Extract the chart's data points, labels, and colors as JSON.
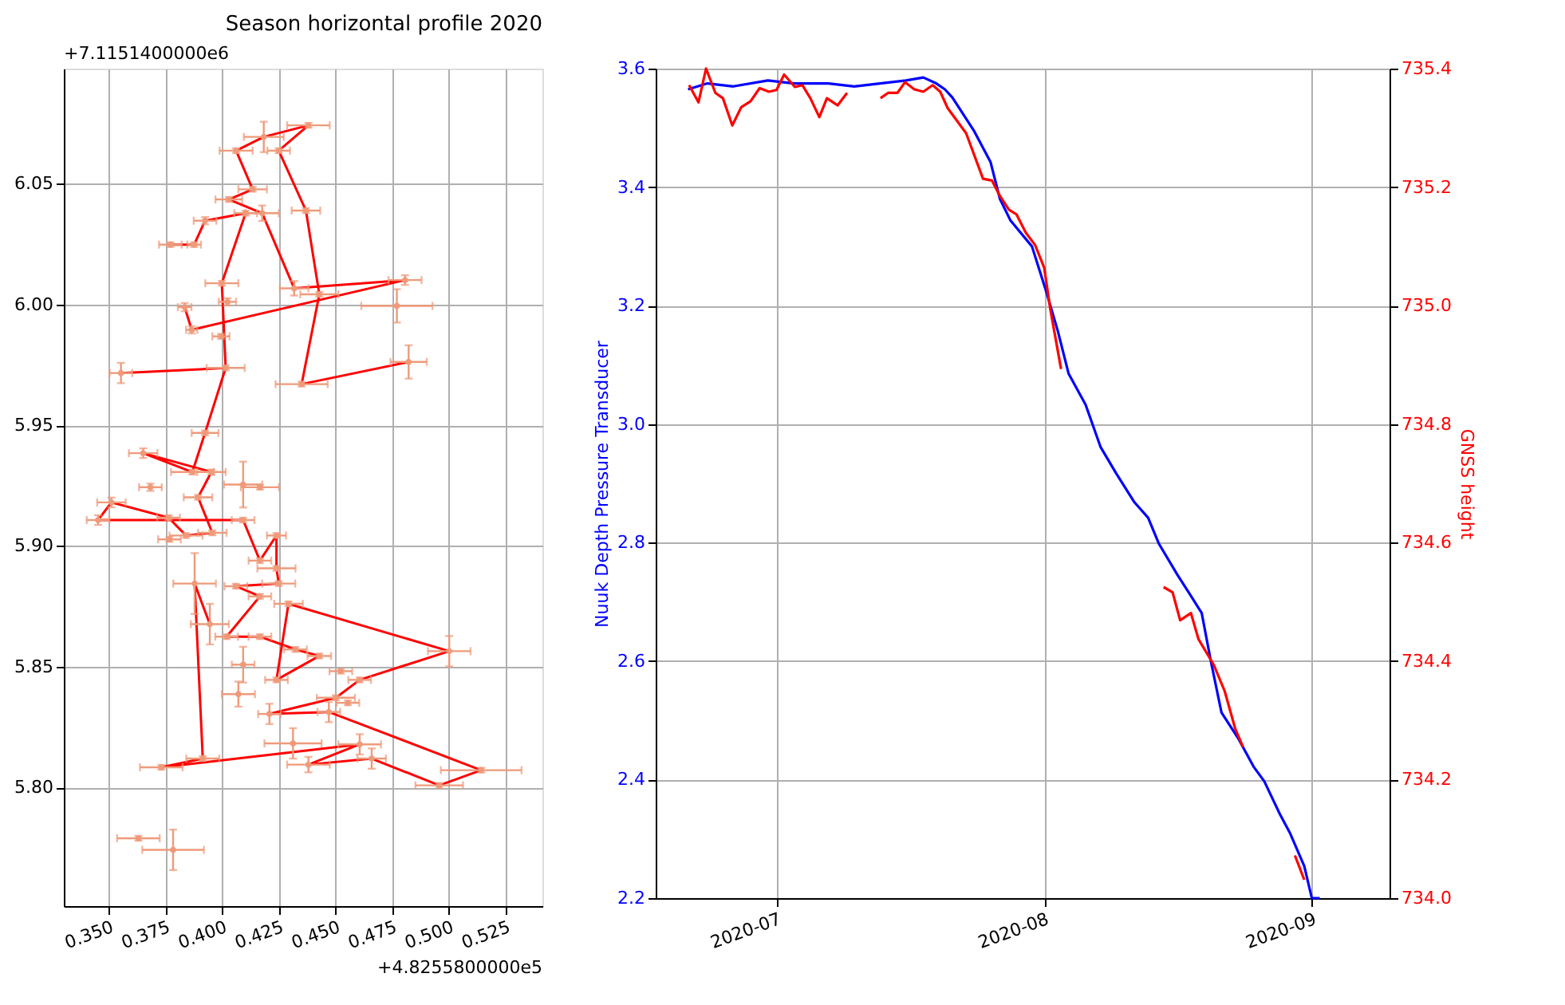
{
  "chart_data": [
    {
      "type": "scatter",
      "title": "Season horizontal profile 2020",
      "annotations": [
        "+4.8255800000e5",
        "+7.1151400000e6"
      ],
      "xlim": [
        0.3301,
        0.5412
      ],
      "ylim": [
        5.7508,
        6.0977
      ],
      "xticks": [
        {
          "value": 0.35,
          "label": "0.350"
        },
        {
          "value": 0.375,
          "label": "0.375"
        },
        {
          "value": 0.4,
          "label": "0.400"
        },
        {
          "value": 0.425,
          "label": "0.425"
        },
        {
          "value": 0.45,
          "label": "0.450"
        },
        {
          "value": 0.475,
          "label": "0.475"
        },
        {
          "value": 0.5,
          "label": "0.500"
        },
        {
          "value": 0.525,
          "label": "0.525"
        }
      ],
      "yticks": [
        {
          "value": 5.8,
          "label": "5.80"
        },
        {
          "value": 5.85,
          "label": "5.85"
        },
        {
          "value": 5.9,
          "label": "5.90"
        },
        {
          "value": 5.95,
          "label": "5.95"
        },
        {
          "value": 6.0,
          "label": "6.00"
        },
        {
          "value": 6.05,
          "label": "6.05"
        }
      ],
      "grid": true,
      "line_style": "solid",
      "series": [
        {
          "type": "line",
          "color": "#ff0000",
          "marker": "none",
          "x": [
            0.4822,
            0.435,
            0.4428,
            0.4369,
            0.4249,
            0.438,
            0.4183,
            0.4061,
            0.4134,
            0.4029,
            0.4176,
            0.4317,
            0.4806,
            0.3865,
            0.3834
          ],
          "values": [
            5.9762,
            5.967,
            6.0042,
            6.0389,
            6.0637,
            6.0742,
            6.0694,
            6.0637,
            6.0477,
            6.0435,
            6.0378,
            6.0067,
            6.0101,
            5.9895,
            5.9989
          ]
        },
        {
          "type": "line",
          "color": "#ff0000",
          "marker": "none",
          "x": [
            0.3771,
            0.3876,
            0.3924,
            0.4103,
            0.3998,
            0.4015,
            0.3553
          ],
          "values": [
            6.0248,
            6.0248,
            6.0347,
            6.0378,
            6.0088,
            5.9737,
            5.9716
          ]
        },
        {
          "type": "line",
          "color": "#ff0000",
          "marker": "none",
          "x": [
            0.4015,
            0.3924,
            0.3868,
            0.3651,
            0.3952,
            0.3893,
            0.3956,
            0.384,
            0.3763,
            0.3511,
            0.3452,
            0.4092,
            0.4166,
            0.4239,
            0.4239,
            0.4249,
            0.406,
            0.4166,
            0.4019,
            0.4166,
            0.4323,
            0.4428,
            0.4239,
            0.4292,
            0.5001,
            0.4606,
            0.4501,
            0.4208,
            0.447,
            0.5142,
            0.4957,
            0.4659,
            0.438,
            0.4606,
            0.3731,
            0.3914,
            0.3878,
            0.3945
          ],
          "values": [
            5.9737,
            5.9468,
            5.9306,
            5.9384,
            5.9306,
            5.9201,
            5.9054,
            5.9043,
            5.9117,
            5.918,
            5.9107,
            5.9107,
            5.8939,
            5.9043,
            5.8907,
            5.8844,
            5.8833,
            5.8791,
            5.8624,
            5.8624,
            5.8571,
            5.8544,
            5.8445,
            5.876,
            5.8564,
            5.8445,
            5.8371,
            5.8304,
            5.8312,
            5.8071,
            5.8008,
            5.8119,
            5.8094,
            5.8178,
            5.8083,
            5.8119,
            5.8844,
            5.8676
          ]
        },
        {
          "type": "scatter",
          "color": "#ef9a7a",
          "marker": "circle",
          "x": [
            0.438,
            0.4183,
            0.4061,
            0.4249,
            0.4134,
            0.4029,
            0.4176,
            0.4103,
            0.4369,
            0.3924,
            0.3771,
            0.3876,
            0.3998,
            0.4317,
            0.4428,
            0.4806,
            0.477,
            0.4023,
            0.3834,
            0.3865,
            0.3994,
            0.4015,
            0.3553,
            0.435,
            0.4822,
            0.3924,
            0.3651,
            0.3868,
            0.3952,
            0.3683,
            0.4092,
            0.4166,
            0.3511,
            0.3893,
            0.3763,
            0.3452,
            0.4092,
            0.3956,
            0.384,
            0.3767,
            0.4239,
            0.4166,
            0.4239,
            0.3878,
            0.4249,
            0.406,
            0.4166,
            0.4292,
            0.3945,
            0.5001,
            0.4019,
            0.4166,
            0.4323,
            0.4428,
            0.4239,
            0.4523,
            0.4606,
            0.4092,
            0.4071,
            0.4501,
            0.4554,
            0.4208,
            0.447,
            0.4312,
            0.4606,
            0.3914,
            0.3731,
            0.438,
            0.4659,
            0.5142,
            0.4957,
            0.363,
            0.3783
          ],
          "values": [
            6.0742,
            6.0694,
            6.0637,
            6.0637,
            6.0477,
            6.0435,
            6.0378,
            6.0378,
            6.0389,
            6.0347,
            6.0248,
            6.0248,
            6.0088,
            6.0067,
            6.0042,
            6.0101,
            5.9994,
            6.0011,
            5.9989,
            5.9895,
            5.9868,
            5.9737,
            5.9716,
            5.967,
            5.9762,
            5.9468,
            5.9384,
            5.9306,
            5.9306,
            5.9243,
            5.9254,
            5.9243,
            5.918,
            5.9201,
            5.9117,
            5.9107,
            5.9107,
            5.9054,
            5.9043,
            5.9027,
            5.9043,
            5.8939,
            5.8907,
            5.8844,
            5.8844,
            5.8833,
            5.8791,
            5.876,
            5.8676,
            5.8564,
            5.8624,
            5.8624,
            5.8571,
            5.8544,
            5.8445,
            5.8481,
            5.8445,
            5.8508,
            5.8386,
            5.8371,
            5.835,
            5.8304,
            5.8312,
            5.8182,
            5.8178,
            5.8119,
            5.8083,
            5.8094,
            5.8119,
            5.8071,
            5.8008,
            5.7789,
            5.7741
          ],
          "errors": [
            0.001,
            0.0063,
            0.001,
            0.001,
            0.001,
            0.001,
            0.0032,
            0.001,
            0.001,
            0.0015,
            0.001,
            0.001,
            0.001,
            0.003,
            0.001,
            0.002,
            0.0069,
            0.0015,
            0.0017,
            0.0015,
            0.001,
            0.001,
            0.0042,
            0.001,
            0.0069,
            0.001,
            0.002,
            0.001,
            0.001,
            0.0015,
            0.0095,
            0.001,
            0.002,
            0.001,
            0.001,
            0.002,
            0.001,
            0.001,
            0.001,
            0.001,
            0.001,
            0.001,
            0.001,
            0.0126,
            0.001,
            0.001,
            0.001,
            0.001,
            0.0084,
            0.0063,
            0.001,
            0.001,
            0.001,
            0.001,
            0.001,
            0.001,
            0.001,
            0.0074,
            0.0052,
            0.001,
            0.001,
            0.0042,
            0.0042,
            0.0063,
            0.0042,
            0.001,
            0.001,
            0.0032,
            0.0042,
            0.001,
            0.001,
            0.001,
            0.0084
          ],
          "xerrors": [
            0.0094,
            0.0088,
            0.0073,
            0.005,
            0.0063,
            0.0059,
            0.0073,
            0.005,
            0.0063,
            0.005,
            0.005,
            0.003,
            0.0073,
            0.0063,
            0.0084,
            0.0073,
            0.0157,
            0.0038,
            0.003,
            0.0025,
            0.0038,
            0.0084,
            0.005,
            0.0115,
            0.008,
            0.0059,
            0.0063,
            0.0094,
            0.0063,
            0.005,
            0.0084,
            0.0084,
            0.0063,
            0.0063,
            0.005,
            0.005,
            0.005,
            0.0063,
            0.0073,
            0.005,
            0.0042,
            0.005,
            0.0084,
            0.0094,
            0.0073,
            0.005,
            0.005,
            0.0063,
            0.0084,
            0.0094,
            0.005,
            0.005,
            0.005,
            0.0052,
            0.005,
            0.005,
            0.005,
            0.005,
            0.0073,
            0.0084,
            0.005,
            0.005,
            0.005,
            0.0126,
            0.0094,
            0.0073,
            0.0094,
            0.0094,
            0.0063,
            0.0178,
            0.0105,
            0.0094,
            0.0136
          ]
        }
      ]
    },
    {
      "type": "line",
      "ylabel": "Nuuk Depth Pressure Transducer",
      "y2label": "GNSS height",
      "xlim": [
        "2020-06-17",
        "2020-09-10"
      ],
      "xticks": [
        {
          "value": "2020-07-01",
          "label": "2020-07"
        },
        {
          "value": "2020-08-01",
          "label": "2020-08"
        },
        {
          "value": "2020-09-01",
          "label": "2020-09"
        }
      ],
      "ylim": [
        2.2,
        3.6
      ],
      "yticks": [
        2.2,
        2.4,
        2.6,
        2.8,
        {
          "value": 3.0,
          "label": "3.0"
        },
        3.2,
        3.4,
        3.6
      ],
      "y2lim": [
        734.0,
        735.4
      ],
      "y2ticks": [
        {
          "value": 734.0,
          "label": "734.0"
        },
        734.2,
        734.4,
        734.6,
        734.8,
        {
          "value": 735.0,
          "label": "735.0"
        },
        735.2,
        735.4
      ],
      "grid": true,
      "line_style": "solid",
      "marker": "none",
      "series": [
        {
          "color": "#0000ff",
          "x": [
            "2020-06-20T18:00",
            "2020-06-23T00:00",
            "2020-06-26T00:00",
            "2020-06-30T00:00",
            "2020-07-03T00:00",
            "2020-07-07T00:00",
            "2020-07-10T00:00",
            "2020-07-13T00:00",
            "2020-07-16T00:00",
            "2020-07-18T00:00",
            "2020-07-19T12:00",
            "2020-07-20T12:00",
            "2020-07-21T09:00",
            "2020-07-23T20:00",
            "2020-07-25T19:00",
            "2020-07-26T21:00",
            "2020-07-28T02:00",
            "2020-07-30T14:00",
            "2020-08-01T04:00",
            "2020-08-02T14:00",
            "2020-08-03T20:00",
            "2020-08-05T19:00",
            "2020-08-07T13:00",
            "2020-08-09T08:00",
            "2020-08-11T11:00",
            "2020-08-13T01:00",
            "2020-08-14T07:00",
            "2020-08-16T10:00",
            "2020-08-18T00:00",
            "2020-08-19T06:00",
            "2020-08-20T07:00",
            "2020-08-21T13:00",
            "2020-08-23T12:00",
            "2020-08-25T06:00",
            "2020-08-26T12:00",
            "2020-08-28T07:00",
            "2020-08-29T12:00",
            "2020-08-31T03:00",
            "2020-09-01T00:00",
            "2020-09-01T22:00"
          ],
          "values": [
            3.565,
            3.575,
            3.57,
            3.58,
            3.575,
            3.575,
            3.57,
            3.575,
            3.58,
            3.585,
            3.575,
            3.565,
            3.551,
            3.496,
            3.442,
            3.38,
            3.344,
            3.3,
            3.227,
            3.157,
            3.085,
            3.033,
            2.961,
            2.917,
            2.868,
            2.842,
            2.798,
            2.746,
            2.71,
            2.681,
            2.601,
            2.513,
            2.469,
            2.422,
            2.397,
            2.342,
            2.309,
            2.254,
            2.2,
            2.2
          ]
        },
        {
          "color": "#ff0000",
          "axis": "y2",
          "x": [
            "2020-06-20T21:00",
            "2020-06-21T23:00",
            "2020-06-22T20:00",
            "2020-06-23T22:00",
            "2020-06-24T19:00",
            "2020-06-25T21:00",
            "2020-06-26T22:00",
            "2020-06-28T00:00",
            "2020-06-29T01:00",
            "2020-06-30T03:00",
            "2020-07-01T00:00",
            "2020-07-01T21:00",
            "2020-07-03T03:00",
            "2020-07-04T00:00",
            "2020-07-04T22:00",
            "2020-07-05T23:00",
            "2020-07-06T20:00",
            "2020-07-08T02:00",
            "2020-07-09T04:00",
            "2020-07-11T00:00",
            "2020-07-13T01:00",
            "2020-07-13T22:00",
            "2020-07-15T00:00",
            "2020-07-15T21:00",
            "2020-07-16T23:00",
            "2020-07-18T00:00",
            "2020-07-19T02:00",
            "2020-07-19T23:00",
            "2020-07-20T20:00",
            "2020-07-22T23:00",
            "2020-07-24T22:00",
            "2020-07-25T23:00",
            "2020-07-26T21:00",
            "2020-07-27T22:00",
            "2020-07-28T19:00",
            "2020-07-29T21:00",
            "2020-07-30T23:00",
            "2020-08-01T00:00",
            "2020-08-01T17:00",
            "2020-08-02T23:00",
            "2020-08-08T00:00",
            "2020-08-14T20:00",
            "2020-08-15T21:00",
            "2020-08-16T18:00",
            "2020-08-18T00:00",
            "2020-08-18T21:00",
            "2020-08-20T16:00",
            "2020-08-21T22:00",
            "2020-08-23T03:00",
            "2020-08-24T01:00",
            "2020-08-27T00:00",
            "2020-08-30T01:00",
            "2020-08-31T03:00"
          ],
          "values": [
            735.372,
            735.343,
            735.4,
            735.359,
            735.35,
            735.304,
            735.335,
            735.345,
            735.367,
            735.361,
            735.364,
            735.39,
            735.369,
            735.372,
            735.35,
            735.318,
            735.35,
            735.338,
            735.359,
            null,
            735.35,
            735.359,
            735.359,
            735.377,
            735.365,
            735.361,
            735.372,
            735.361,
            735.333,
            735.291,
            735.214,
            735.211,
            735.185,
            735.162,
            735.154,
            735.123,
            735.102,
            735.064,
            734.994,
            734.893,
            null,
            734.525,
            734.516,
            734.469,
            734.481,
            734.437,
            734.393,
            734.349,
            734.286,
            734.255,
            null,
            734.072,
            734.031
          ]
        }
      ]
    }
  ]
}
